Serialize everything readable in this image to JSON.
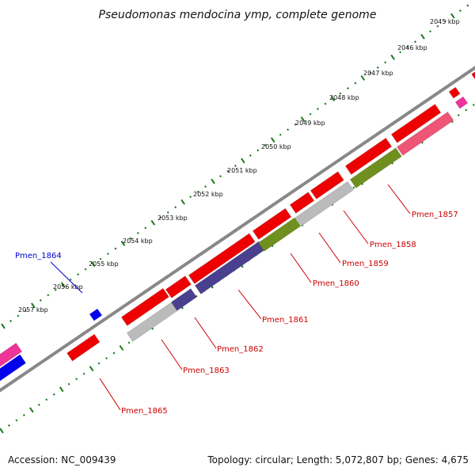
{
  "title": "Pseudomonas mendocina ymp, complete genome",
  "footer": {
    "accession": "Accession: NC_009439",
    "summary": "Topology: circular; Length: 5,072,807 bp; Genes: 4,675"
  },
  "kbp_labels": [
    "2045 kbp",
    "2046 kbp",
    "2047 kbp",
    "2048 kbp",
    "2049 kbp",
    "2050 kbp",
    "2051 kbp",
    "2052 kbp",
    "2053 kbp",
    "2054 kbp",
    "2055 kbp",
    "2056 kbp",
    "2057 kbp"
  ],
  "gene_labels": [
    "Pmen_1857",
    "Pmen_1858",
    "Pmen_1859",
    "Pmen_1860",
    "Pmen_1861",
    "Pmen_1862",
    "Pmen_1863",
    "Pmen_1865",
    "Pmen_1864"
  ],
  "colors": {
    "backbone": "#888888",
    "tick": "#1a7a1a",
    "red": "#ee0000",
    "pink": "#ee5577",
    "gray": "#bbbbbb",
    "purple": "#4b3f8f",
    "olive": "#6f8f1f",
    "blue": "#0000ee",
    "magenta": "#ee3399",
    "red_label": "#cc0000",
    "blue_label": "#0000cc"
  }
}
